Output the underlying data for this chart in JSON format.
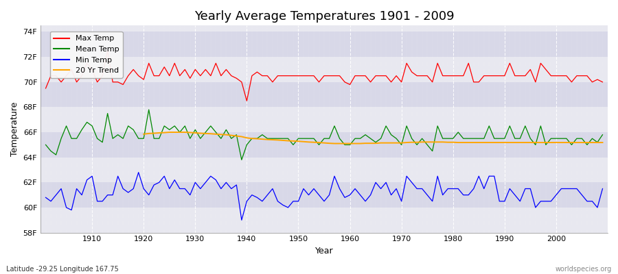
{
  "title": "Yearly Average Temperatures 1901 - 2009",
  "xlabel": "Year",
  "ylabel": "Temperature",
  "footnote_left": "Latitude -29.25 Longitude 167.75",
  "footnote_right": "worldspecies.org",
  "years": [
    1901,
    1902,
    1903,
    1904,
    1905,
    1906,
    1907,
    1908,
    1909,
    1910,
    1911,
    1912,
    1913,
    1914,
    1915,
    1916,
    1917,
    1918,
    1919,
    1920,
    1921,
    1922,
    1923,
    1924,
    1925,
    1926,
    1927,
    1928,
    1929,
    1930,
    1931,
    1932,
    1933,
    1934,
    1935,
    1936,
    1937,
    1938,
    1939,
    1940,
    1941,
    1942,
    1943,
    1944,
    1945,
    1946,
    1947,
    1948,
    1949,
    1950,
    1951,
    1952,
    1953,
    1954,
    1955,
    1956,
    1957,
    1958,
    1959,
    1960,
    1961,
    1962,
    1963,
    1964,
    1965,
    1966,
    1967,
    1968,
    1969,
    1970,
    1971,
    1972,
    1973,
    1974,
    1975,
    1976,
    1977,
    1978,
    1979,
    1980,
    1981,
    1982,
    1983,
    1984,
    1985,
    1986,
    1987,
    1988,
    1989,
    1990,
    1991,
    1992,
    1993,
    1994,
    1995,
    1996,
    1997,
    1998,
    1999,
    2000,
    2001,
    2002,
    2003,
    2004,
    2005,
    2006,
    2007,
    2008,
    2009
  ],
  "max_temp": [
    69.5,
    70.5,
    70.5,
    70.0,
    70.5,
    71.0,
    70.0,
    70.5,
    71.5,
    71.0,
    70.0,
    70.5,
    72.5,
    70.0,
    70.0,
    69.8,
    70.5,
    71.0,
    70.5,
    70.2,
    71.5,
    70.5,
    70.5,
    71.2,
    70.5,
    71.5,
    70.5,
    71.0,
    70.3,
    71.0,
    70.5,
    71.0,
    70.5,
    71.5,
    70.5,
    71.0,
    70.5,
    70.3,
    70.0,
    68.5,
    70.5,
    70.8,
    70.5,
    70.5,
    70.0,
    70.5,
    70.5,
    70.5,
    70.5,
    70.5,
    70.5,
    70.5,
    70.5,
    70.0,
    70.5,
    70.5,
    70.5,
    70.5,
    70.0,
    69.8,
    70.5,
    70.5,
    70.5,
    70.0,
    70.5,
    70.5,
    70.5,
    70.0,
    70.5,
    70.0,
    71.5,
    70.8,
    70.5,
    70.5,
    70.5,
    70.0,
    71.5,
    70.5,
    70.5,
    70.5,
    70.5,
    70.5,
    71.5,
    70.0,
    70.0,
    70.5,
    70.5,
    70.5,
    70.5,
    70.5,
    71.5,
    70.5,
    70.5,
    70.5,
    71.0,
    70.0,
    71.5,
    71.0,
    70.5,
    70.5,
    70.5,
    70.5,
    70.0,
    70.5,
    70.5,
    70.5,
    70.0,
    70.2,
    70.0
  ],
  "mean_temp": [
    65.0,
    64.5,
    64.2,
    65.5,
    66.5,
    65.5,
    65.5,
    66.2,
    66.8,
    66.5,
    65.5,
    65.2,
    67.5,
    65.5,
    65.8,
    65.5,
    66.5,
    66.2,
    65.5,
    65.5,
    67.8,
    65.5,
    65.5,
    66.5,
    66.2,
    66.5,
    66.0,
    66.5,
    65.5,
    66.2,
    65.5,
    66.0,
    66.5,
    66.0,
    65.5,
    66.2,
    65.5,
    65.8,
    63.8,
    65.0,
    65.5,
    65.5,
    65.8,
    65.5,
    65.5,
    65.5,
    65.5,
    65.5,
    65.0,
    65.5,
    65.5,
    65.5,
    65.5,
    65.0,
    65.5,
    65.5,
    66.5,
    65.5,
    65.0,
    65.0,
    65.5,
    65.5,
    65.8,
    65.5,
    65.2,
    65.5,
    66.5,
    65.8,
    65.5,
    65.0,
    66.5,
    65.5,
    65.0,
    65.5,
    65.0,
    64.5,
    66.5,
    65.5,
    65.5,
    65.5,
    66.0,
    65.5,
    65.5,
    65.5,
    65.5,
    65.5,
    66.5,
    65.5,
    65.5,
    65.5,
    66.5,
    65.5,
    65.5,
    66.5,
    65.5,
    65.0,
    66.5,
    65.0,
    65.5,
    65.5,
    65.5,
    65.5,
    65.0,
    65.5,
    65.5,
    65.0,
    65.5,
    65.2,
    65.8
  ],
  "min_temp": [
    60.8,
    60.5,
    61.0,
    61.5,
    60.0,
    59.8,
    61.5,
    61.0,
    62.2,
    62.5,
    60.5,
    60.5,
    61.0,
    61.0,
    62.5,
    61.5,
    61.2,
    61.5,
    62.8,
    61.5,
    61.0,
    61.8,
    62.0,
    62.5,
    61.5,
    62.2,
    61.5,
    61.5,
    61.0,
    62.0,
    61.5,
    62.0,
    62.5,
    62.2,
    61.5,
    62.0,
    61.5,
    61.8,
    59.0,
    60.5,
    61.0,
    60.8,
    60.5,
    61.0,
    61.5,
    60.5,
    60.2,
    60.0,
    60.5,
    60.5,
    61.5,
    61.0,
    61.5,
    61.0,
    60.5,
    61.0,
    62.5,
    61.5,
    60.8,
    61.0,
    61.5,
    61.0,
    60.5,
    61.0,
    62.0,
    61.5,
    62.0,
    61.0,
    61.5,
    60.5,
    62.5,
    62.0,
    61.5,
    61.5,
    61.0,
    60.5,
    62.5,
    61.0,
    61.5,
    61.5,
    61.5,
    61.0,
    61.0,
    61.5,
    62.5,
    61.5,
    62.5,
    62.5,
    60.5,
    60.5,
    61.5,
    61.0,
    60.5,
    61.5,
    61.5,
    60.0,
    60.5,
    60.5,
    60.5,
    61.0,
    61.5,
    61.5,
    61.5,
    61.5,
    61.0,
    60.5,
    60.5,
    60.0,
    61.5
  ],
  "trend_years": [
    1920,
    1921,
    1922,
    1923,
    1924,
    1925,
    1926,
    1927,
    1928,
    1929,
    1930,
    1931,
    1932,
    1933,
    1934,
    1935,
    1936,
    1937,
    1938,
    1939,
    1940,
    1941,
    1942,
    1943,
    1944,
    1945,
    1946,
    1947,
    1948,
    1949,
    1950,
    1951,
    1952,
    1953,
    1954,
    1955,
    1956,
    1957,
    1958,
    1959,
    1960,
    1961,
    1962,
    1963,
    1964,
    1965,
    1966,
    1967,
    1968,
    1969,
    1970,
    1971,
    1972,
    1973,
    1974,
    1975,
    1976,
    1977,
    1978,
    1979,
    1980,
    1981,
    1982,
    1983,
    1984,
    1985,
    1986,
    1987,
    1988,
    1989,
    1990,
    1991,
    1992,
    1993,
    1994,
    1995,
    1996,
    1997,
    1998,
    1999,
    2000,
    2001,
    2002,
    2003,
    2004,
    2005,
    2006,
    2007,
    2008,
    2009
  ],
  "trend_vals": [
    65.85,
    65.9,
    65.92,
    65.95,
    65.97,
    66.0,
    66.0,
    66.0,
    66.0,
    65.98,
    65.95,
    65.92,
    65.9,
    65.88,
    65.85,
    65.82,
    65.8,
    65.75,
    65.7,
    65.65,
    65.55,
    65.5,
    65.48,
    65.45,
    65.42,
    65.4,
    65.38,
    65.35,
    65.32,
    65.3,
    65.28,
    65.25,
    65.22,
    65.2,
    65.18,
    65.15,
    65.12,
    65.1,
    65.1,
    65.1,
    65.1,
    65.1,
    65.1,
    65.12,
    65.12,
    65.12,
    65.15,
    65.15,
    65.15,
    65.15,
    65.15,
    65.18,
    65.2,
    65.2,
    65.22,
    65.22,
    65.22,
    65.22,
    65.22,
    65.2,
    65.2,
    65.18,
    65.18,
    65.18,
    65.18,
    65.18,
    65.18,
    65.18,
    65.18,
    65.18,
    65.18,
    65.18,
    65.18,
    65.18,
    65.18,
    65.18,
    65.18,
    65.18,
    65.18,
    65.18,
    65.18,
    65.18,
    65.18,
    65.18,
    65.18,
    65.18,
    65.18,
    65.18,
    65.18,
    65.18
  ],
  "max_color": "#ff0000",
  "mean_color": "#008800",
  "min_color": "#0000ff",
  "trend_color": "#ffa500",
  "bg_color": "#ffffff",
  "plot_bg_light": "#e8e8f0",
  "plot_bg_dark": "#d8d8e8",
  "ylim": [
    58,
    74.5
  ],
  "yticks": [
    58,
    60,
    62,
    64,
    66,
    68,
    70,
    72,
    74
  ],
  "ytick_labels": [
    "58F",
    "60F",
    "62F",
    "64F",
    "66F",
    "68F",
    "70F",
    "72F",
    "74F"
  ],
  "xlim": [
    1900,
    2010
  ],
  "xticks": [
    1910,
    1920,
    1930,
    1940,
    1950,
    1960,
    1970,
    1980,
    1990,
    2000
  ],
  "linewidth": 0.9,
  "trend_linewidth": 1.4
}
